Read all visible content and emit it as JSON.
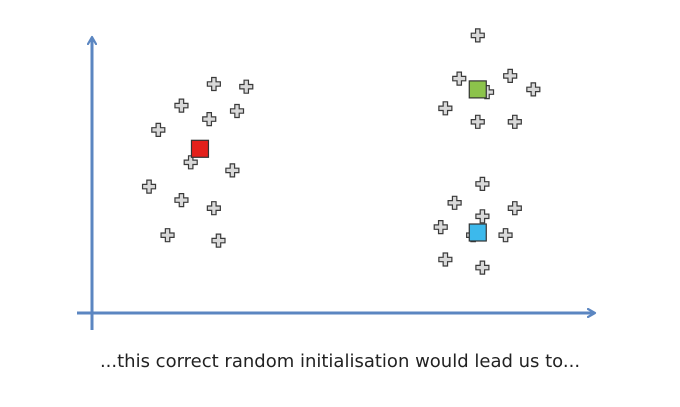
{
  "caption": "...this correct random initialisation would lead us to...",
  "colors": {
    "axis": "#5b86c1",
    "point_fill": "#d9d9d9",
    "point_stroke": "#3a3a3a",
    "red": "#e3201b",
    "green": "#8cc34b",
    "blue": "#3cb9ec"
  },
  "chart_data": {
    "type": "scatter",
    "title": "",
    "xlabel": "",
    "ylabel": "",
    "xlim": [
      0,
      100
    ],
    "ylim": [
      0,
      100
    ],
    "grid": false,
    "series": [
      {
        "marker": "cross",
        "points": [
          [
            22,
            80
          ],
          [
            29,
            79
          ],
          [
            15,
            72
          ],
          [
            27,
            70
          ],
          [
            21,
            67
          ],
          [
            10,
            63
          ],
          [
            17,
            51
          ],
          [
            26,
            48
          ],
          [
            8,
            42
          ],
          [
            15,
            37
          ],
          [
            22,
            34
          ],
          [
            12,
            24
          ],
          [
            23,
            22
          ],
          [
            79,
            98
          ],
          [
            75,
            82
          ],
          [
            86,
            83
          ],
          [
            72,
            71
          ],
          [
            81,
            77
          ],
          [
            91,
            78
          ],
          [
            79,
            66
          ],
          [
            87,
            66
          ],
          [
            80,
            43
          ],
          [
            74,
            36
          ],
          [
            87,
            34
          ],
          [
            80,
            31
          ],
          [
            71,
            27
          ],
          [
            78,
            24
          ],
          [
            85,
            24
          ],
          [
            72,
            15
          ],
          [
            80,
            12
          ]
        ]
      }
    ],
    "centroids": [
      {
        "color": "red",
        "x": 19,
        "y": 56
      },
      {
        "color": "green",
        "x": 79,
        "y": 78
      },
      {
        "color": "blue",
        "x": 79,
        "y": 25
      }
    ]
  }
}
